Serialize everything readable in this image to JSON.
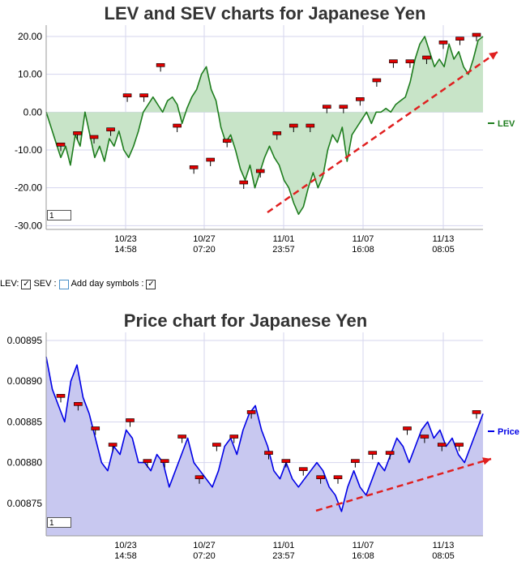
{
  "chart_data": [
    {
      "type": "line",
      "title": "LEV and SEV charts for Japanese Yen",
      "y_ticks": [
        "20.00",
        "10.00",
        "0.00",
        "-10.00",
        "-20.00",
        "-30.00"
      ],
      "ylim": [
        -31,
        23
      ],
      "x_tick_dates": [
        "10/23",
        "10/27",
        "11/01",
        "11/07",
        "11/13"
      ],
      "x_tick_times": [
        "14:58",
        "07:20",
        "23:57",
        "16:08",
        "08:05"
      ],
      "legend": "right",
      "grid": true,
      "series": [
        {
          "name": "LEV",
          "color": "#1e7d1e",
          "fill": "#c8e4c8",
          "values": [
            0,
            -4,
            -8,
            -12,
            -9,
            -14,
            -6,
            -9,
            0,
            -6,
            -12,
            -9,
            -13,
            -7,
            -9,
            -5,
            -10,
            -12,
            -9,
            -5,
            0,
            2,
            4,
            2,
            0,
            3,
            4,
            2,
            -3,
            1,
            4,
            6,
            10,
            12,
            6,
            3,
            -4,
            -8,
            -6,
            -10,
            -15,
            -18,
            -14,
            -20,
            -16,
            -12,
            -9,
            -12,
            -14,
            -18,
            -20,
            -24,
            -27,
            -25,
            -20,
            -16,
            -20,
            -17,
            -10,
            -6,
            -8,
            -4,
            -13,
            -6,
            -4,
            -2,
            0,
            -3,
            0,
            0,
            1,
            0,
            2,
            3,
            4,
            8,
            14,
            18,
            20,
            16,
            12,
            14,
            12,
            18,
            14,
            16,
            12,
            10,
            14,
            19,
            20
          ]
        }
      ],
      "markers": [
        -9,
        -6,
        -7,
        -5,
        4,
        4,
        12,
        -4,
        -15,
        -13,
        -8,
        -19,
        -16,
        -6,
        -4,
        -4,
        1,
        1,
        3,
        8,
        13,
        13,
        14,
        18,
        19,
        20
      ]
    },
    {
      "type": "line",
      "title": "Price chart for Japanese Yen",
      "y_ticks": [
        "0.00895",
        "0.00890",
        "0.00885",
        "0.00880",
        "0.00875"
      ],
      "ylim": [
        0.00871,
        0.00896
      ],
      "x_tick_dates": [
        "10/23",
        "10/27",
        "11/01",
        "11/07",
        "11/13"
      ],
      "x_tick_times": [
        "14:58",
        "07:20",
        "23:57",
        "16:08",
        "08:05"
      ],
      "legend": "right",
      "grid": true,
      "series": [
        {
          "name": "Price",
          "color": "#0000e6",
          "fill": "#c8c8f0",
          "values": [
            0.00893,
            0.00889,
            0.00887,
            0.00885,
            0.0089,
            0.00892,
            0.00888,
            0.00886,
            0.00883,
            0.0088,
            0.00879,
            0.00882,
            0.00881,
            0.00884,
            0.00883,
            0.0088,
            0.0088,
            0.00879,
            0.00881,
            0.0088,
            0.00877,
            0.00879,
            0.00881,
            0.00883,
            0.0088,
            0.00879,
            0.00878,
            0.00877,
            0.00879,
            0.00882,
            0.00883,
            0.00881,
            0.00884,
            0.00886,
            0.00887,
            0.00884,
            0.00882,
            0.00879,
            0.00878,
            0.0088,
            0.00878,
            0.00877,
            0.00878,
            0.00879,
            0.0088,
            0.00879,
            0.00877,
            0.00876,
            0.00874,
            0.00877,
            0.00879,
            0.00877,
            0.00876,
            0.00878,
            0.0088,
            0.00879,
            0.00881,
            0.00883,
            0.00882,
            0.0088,
            0.00882,
            0.00884,
            0.00885,
            0.00883,
            0.00884,
            0.00882,
            0.00883,
            0.00881,
            0.0088,
            0.00882,
            0.00884,
            0.00886
          ]
        }
      ],
      "markers": [
        0.00888,
        0.00887,
        0.00884,
        0.00882,
        0.00885,
        0.0088,
        0.0088,
        0.00883,
        0.00878,
        0.00882,
        0.00883,
        0.00886,
        0.00881,
        0.0088,
        0.00879,
        0.00878,
        0.00878,
        0.0088,
        0.00881,
        0.00881,
        0.00884,
        0.00883,
        0.00882,
        0.00882,
        0.00886
      ]
    }
  ],
  "controls": {
    "lev_label": "LEV:",
    "lev_check": "✓",
    "sev_label": "SEV :",
    "symbols_label": "Add day symbols :",
    "symbols_check": "✓"
  },
  "index_box_1": "1",
  "index_box_2": "1"
}
